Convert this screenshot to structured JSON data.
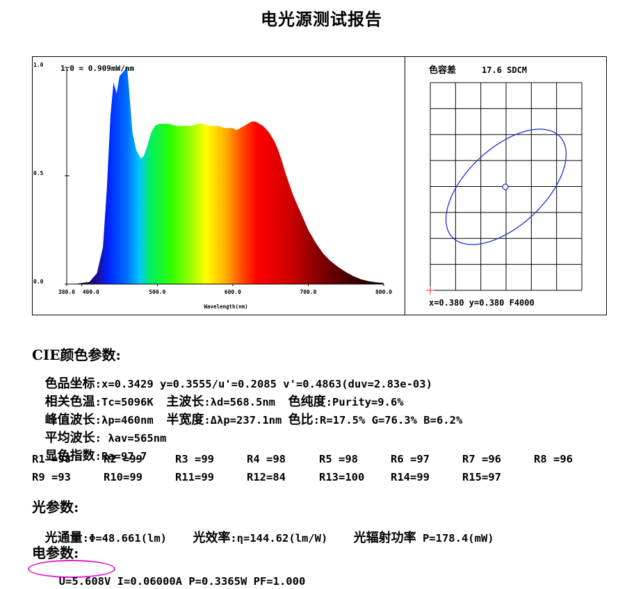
{
  "title": "电光源测试报告",
  "chart_data": [
    {
      "type": "area",
      "xlabel": "Wavelength(nm)",
      "ylabel": "",
      "xlim": [
        380,
        800
      ],
      "ylim": [
        0,
        1.0
      ],
      "xticks": [
        "380.0",
        "400.0",
        "500.0",
        "600.0",
        "700.0",
        "800.0"
      ],
      "yticks": [
        "0.0",
        "0.5",
        "1.0"
      ],
      "scale_label": "1.0 = 0.909mW/nm",
      "x": [
        380,
        390,
        400,
        410,
        420,
        428,
        433,
        438,
        442,
        446,
        450,
        455,
        460,
        463,
        467,
        472,
        478,
        482,
        487,
        492,
        497,
        502,
        507,
        515,
        525,
        535,
        545,
        555,
        560,
        570,
        580,
        590,
        600,
        605,
        610,
        615,
        620,
        625,
        630,
        635,
        640,
        648,
        655,
        660,
        665,
        670,
        675,
        680,
        685,
        690,
        695,
        700,
        705,
        710,
        720,
        730,
        740,
        750,
        760,
        770,
        780,
        790,
        800
      ],
      "y": [
        0.0,
        0.0,
        0.005,
        0.01,
        0.05,
        0.17,
        0.43,
        0.78,
        0.93,
        0.88,
        0.96,
        0.98,
        1.0,
        0.88,
        0.7,
        0.62,
        0.58,
        0.59,
        0.64,
        0.7,
        0.73,
        0.74,
        0.74,
        0.74,
        0.73,
        0.73,
        0.73,
        0.74,
        0.74,
        0.73,
        0.73,
        0.72,
        0.72,
        0.71,
        0.72,
        0.73,
        0.74,
        0.75,
        0.75,
        0.74,
        0.73,
        0.7,
        0.66,
        0.62,
        0.57,
        0.51,
        0.46,
        0.41,
        0.37,
        0.33,
        0.29,
        0.25,
        0.22,
        0.19,
        0.14,
        0.105,
        0.078,
        0.055,
        0.036,
        0.022,
        0.013,
        0.008,
        0.005
      ]
    },
    {
      "type": "scatter",
      "title": "色容差",
      "sdcm_value": "17.6 SDCM",
      "center": [
        0.38,
        0.38
      ],
      "center_label": "x=0.380 y=0.380 F4000",
      "ellipse": true,
      "grid": true
    }
  ],
  "cie": {
    "heading": "CIE颜色参数:",
    "rows": [
      [
        {
          "label": "色品坐标",
          "value": ":x=0.3429 y=0.3555/u'=0.2085 v'=0.4863(duv=2.83e-03)"
        }
      ],
      [
        {
          "label": "相关色温",
          "value": ":Tc=5096K  "
        },
        {
          "label": "主波长",
          "value": ":λd=568.5nm  "
        },
        {
          "label": "色纯度",
          "value": ":Purity=9.6%"
        }
      ],
      [
        {
          "label": "峰值波长",
          "value": ":λp=460nm  "
        },
        {
          "label": "半宽度",
          "value": ":Δλp=237.1nm "
        },
        {
          "label": "色比",
          "value": ":R=17.5% G=76.3% B=6.2%"
        }
      ],
      [
        {
          "label": "平均波长",
          "value": ": λav=565nm"
        }
      ],
      [
        {
          "label": "显色指数",
          "value": ":Ra=97.7"
        }
      ]
    ],
    "r_values": [
      [
        "R1 =98",
        "R2 =99",
        "R3 =99",
        "R4 =98",
        "R5 =98",
        "R6 =97",
        "R7 =96",
        "R8 =96"
      ],
      [
        "R9 =93",
        "R10=99",
        "R11=99",
        "R12=84",
        "R13=100",
        "R14=99",
        "R15=97"
      ]
    ]
  },
  "photometric": {
    "heading": "光参数:",
    "flux_label": "光通量",
    "flux_value": ":Φ=48.661(lm)",
    "eff_label": "光效率",
    "eff_value": ":η=144.62(lm/W)",
    "rad_label": "光辐射功率",
    "rad_value": " P=178.4(mW)"
  },
  "electrical": {
    "heading": "电参数:",
    "voltage": "U=5.608V",
    "rest": "I=0.06000A P=0.3365W PF=1.000",
    "highlight_color": "#e020d0"
  }
}
